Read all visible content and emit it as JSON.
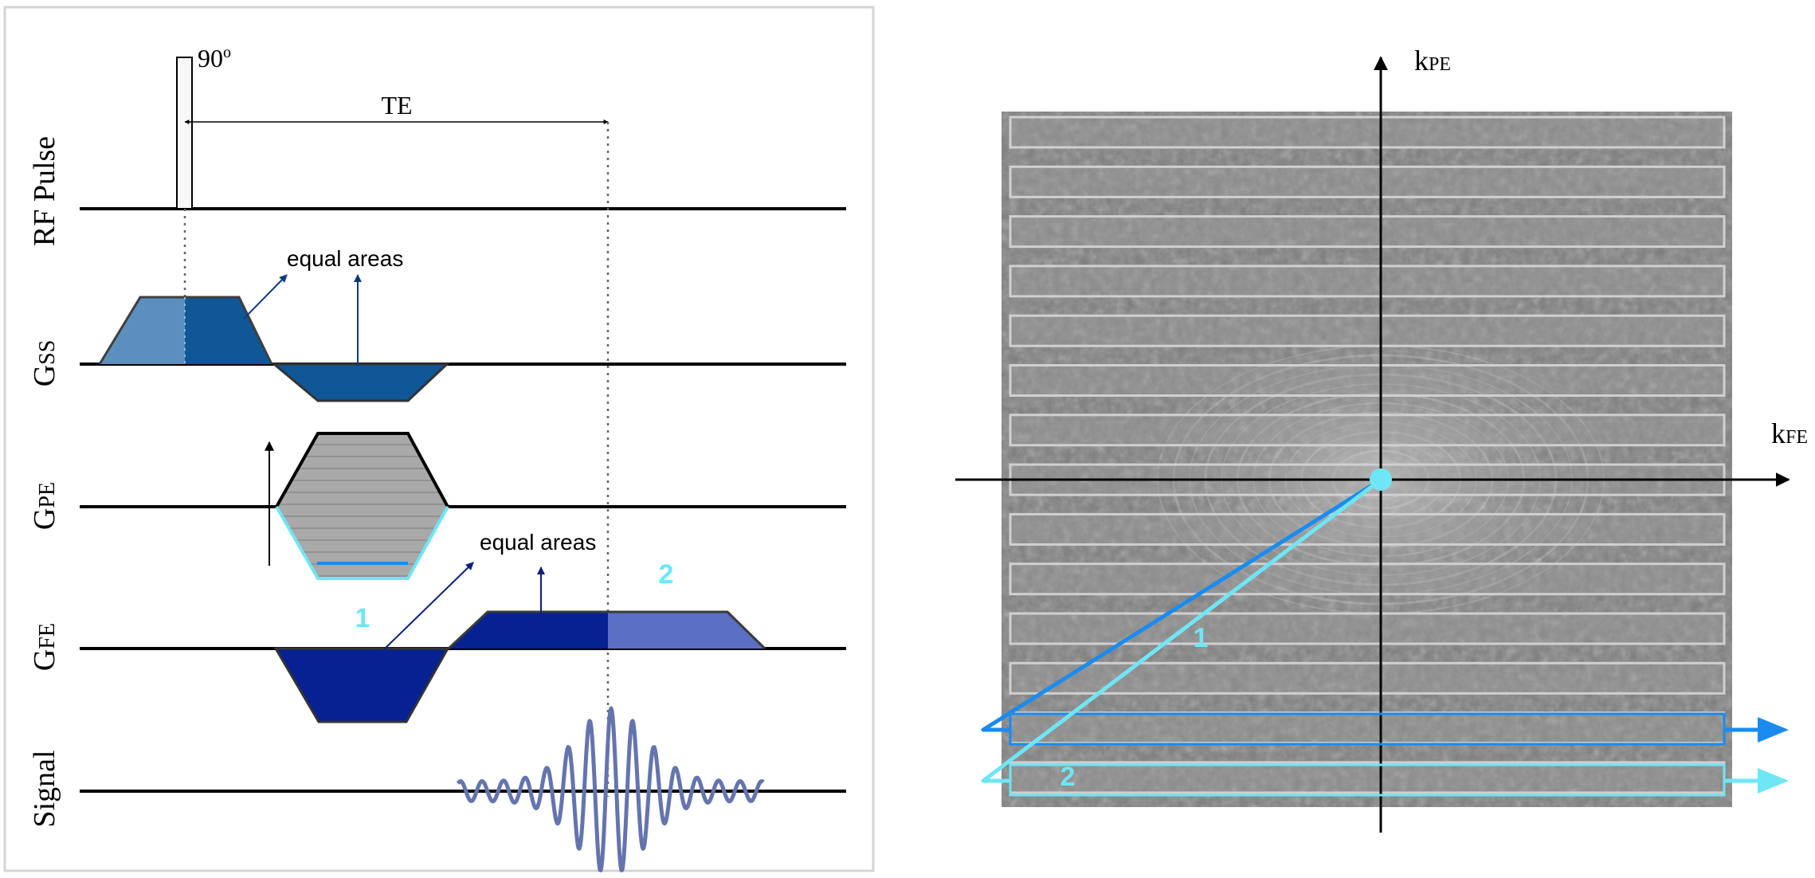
{
  "sequence_diagram": {
    "rows": {
      "rf": "RF Pulse",
      "gss": {
        "main": "G",
        "sub": "SS"
      },
      "gpe": {
        "main": "G",
        "sub": "PE"
      },
      "gfe": {
        "main": "G",
        "sub": "FE"
      },
      "signal": "Signal"
    },
    "flip_angle": {
      "value": "90",
      "sup": "o"
    },
    "te_label": "TE",
    "equal_areas_1": "equal areas",
    "equal_areas_2": "equal areas",
    "marker_1": "1",
    "marker_2": "2"
  },
  "kspace": {
    "axis_pe": {
      "main": "k",
      "sub": "PE"
    },
    "axis_fe": {
      "main": "k",
      "sub": "FE"
    },
    "marker_1": "1",
    "marker_2": "2",
    "line_count": 14
  },
  "colors": {
    "gss_light": "#5c8fbd",
    "gss_dark": "#0f5796",
    "gfe_dark": "#062191",
    "gfe_light": "#5a6ec4",
    "gpe_fill": "#a9a9a9",
    "traj_1": "#1a8cf0",
    "traj_2": "#6fe6f5",
    "origin": "#6fe6f5",
    "signal": "#6474ad",
    "frame": "#d4d4d4"
  }
}
